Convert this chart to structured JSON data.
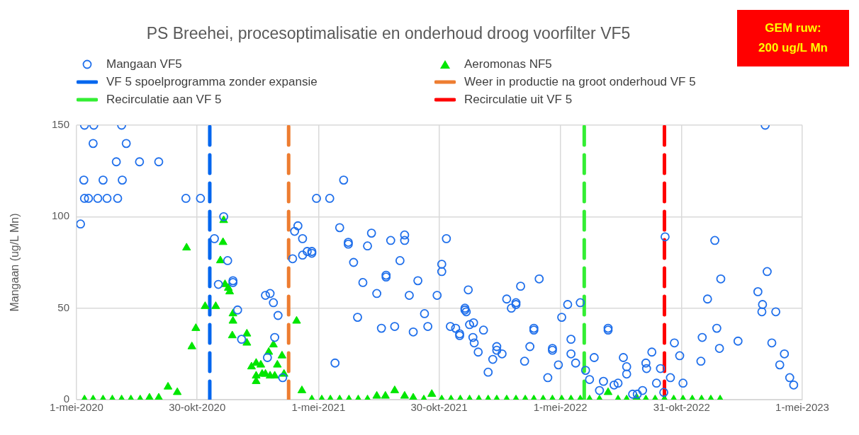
{
  "chart_data": {
    "type": "scatter",
    "title": "PS Breehei, procesoptimalisatie en onderhoud droog voorfilter VF5",
    "ylabel": "Mangaan (ug/L Mn)",
    "annotations": [
      "GEM ruw: 200 ug/L Mn"
    ],
    "xlim": [
      "2020-05-01",
      "2023-05-01"
    ],
    "xticks": [
      {
        "value": "2020-05-01",
        "label": "1-mei-2020"
      },
      {
        "value": "2020-10-30",
        "label": "30-okt-2020"
      },
      {
        "value": "2021-05-01",
        "label": "1-mei-2021"
      },
      {
        "value": "2021-10-30",
        "label": "30-okt-2021"
      },
      {
        "value": "2022-05-01",
        "label": "1-mei-2022"
      },
      {
        "value": "2022-10-31",
        "label": "31-okt-2022"
      },
      {
        "value": "2023-05-01",
        "label": "1-mei-2023"
      }
    ],
    "ylim": [
      0,
      150
    ],
    "yticks": [
      0,
      50,
      100,
      150
    ],
    "grid": true,
    "legend": "top",
    "series": [
      {
        "name": "Mangaan VF5",
        "marker": "circle",
        "color": "#1f6feb",
        "x": [
          "2020-05-07",
          "2020-05-12",
          "2020-05-13",
          "2020-05-13",
          "2020-05-19",
          "2020-05-26",
          "2020-05-27",
          "2020-06-02",
          "2020-06-10",
          "2020-06-16",
          "2020-06-30",
          "2020-07-02",
          "2020-07-08",
          "2020-07-09",
          "2020-07-15",
          "2020-08-04",
          "2020-09-02",
          "2020-10-13",
          "2020-11-04",
          "2020-11-25",
          "2020-12-01",
          "2020-12-09",
          "2020-12-15",
          "2020-12-23",
          "2020-12-23",
          "2020-12-30",
          "2021-01-05",
          "2021-02-10",
          "2021-02-13",
          "2021-02-17",
          "2021-02-22",
          "2021-02-24",
          "2021-03-01",
          "2021-03-08",
          "2021-03-23",
          "2021-03-26",
          "2021-03-31",
          "2021-04-07",
          "2021-04-07",
          "2021-04-14",
          "2021-04-21",
          "2021-04-21",
          "2021-04-28",
          "2021-05-18",
          "2021-05-26",
          "2021-06-02",
          "2021-06-08",
          "2021-06-15",
          "2021-06-15",
          "2021-06-23",
          "2021-06-29",
          "2021-07-07",
          "2021-07-14",
          "2021-07-20",
          "2021-07-28",
          "2021-08-04",
          "2021-08-11",
          "2021-08-11",
          "2021-08-18",
          "2021-08-24",
          "2021-09-01",
          "2021-09-08",
          "2021-09-08",
          "2021-09-15",
          "2021-09-21",
          "2021-09-28",
          "2021-10-08",
          "2021-10-13",
          "2021-10-27",
          "2021-11-03",
          "2021-11-03",
          "2021-11-10",
          "2021-11-16",
          "2021-11-24",
          "2021-11-30",
          "2021-11-30",
          "2021-12-08",
          "2021-12-08",
          "2021-12-10",
          "2021-12-13",
          "2021-12-15",
          "2021-12-20",
          "2021-12-21",
          "2021-12-22",
          "2021-12-28",
          "2022-01-05",
          "2022-01-12",
          "2022-01-19",
          "2022-01-25",
          "2022-01-25",
          "2022-02-02",
          "2022-02-09",
          "2022-02-16",
          "2022-02-23",
          "2022-02-23",
          "2022-03-02",
          "2022-03-08",
          "2022-03-16",
          "2022-03-22",
          "2022-03-22",
          "2022-03-30",
          "2022-04-12",
          "2022-04-19",
          "2022-04-19",
          "2022-04-28",
          "2022-05-03",
          "2022-05-12",
          "2022-05-17",
          "2022-05-17",
          "2022-05-24",
          "2022-05-31",
          "2022-06-08",
          "2022-06-14",
          "2022-06-21",
          "2022-06-29",
          "2022-07-05",
          "2022-07-12",
          "2022-07-12",
          "2022-07-21",
          "2022-07-27",
          "2022-08-04",
          "2022-08-09",
          "2022-08-09",
          "2022-08-18",
          "2022-08-25",
          "2022-09-02",
          "2022-09-07",
          "2022-09-08",
          "2022-09-16",
          "2022-09-23",
          "2022-09-29",
          "2022-10-04",
          "2022-10-06",
          "2022-10-14",
          "2022-10-20",
          "2022-10-28",
          "2022-11-02",
          "2022-11-29",
          "2022-12-01",
          "2022-12-09",
          "2022-12-20",
          "2022-12-23",
          "2022-12-27",
          "2022-12-29",
          "2023-01-24",
          "2023-02-23",
          "2023-03-01",
          "2023-03-02",
          "2023-03-06",
          "2023-03-09",
          "2023-03-16",
          "2023-03-22",
          "2023-03-28",
          "2023-04-04",
          "2023-04-12",
          "2023-04-18"
        ],
        "values": [
          96,
          120,
          150,
          110,
          110,
          140,
          150,
          110,
          120,
          110,
          130,
          110,
          150,
          120,
          140,
          130,
          130,
          110,
          110,
          88,
          63,
          100,
          76,
          65,
          64,
          49,
          33,
          57,
          23,
          58,
          53,
          34,
          46,
          12,
          77,
          92,
          95,
          88,
          79,
          81,
          81,
          80,
          110,
          110,
          20,
          94,
          120,
          86,
          85,
          75,
          45,
          64,
          84,
          91,
          58,
          39,
          68,
          67,
          87,
          40,
          76,
          90,
          87,
          57,
          37,
          65,
          47,
          40,
          57,
          74,
          70,
          88,
          40,
          39,
          36,
          35,
          50,
          49,
          48,
          60,
          41,
          34,
          42,
          31,
          26,
          38,
          15,
          22,
          29,
          27,
          25,
          55,
          50,
          53,
          52,
          62,
          21,
          29,
          39,
          38,
          66,
          12,
          28,
          27,
          19,
          45,
          52,
          33,
          25,
          20,
          53,
          16,
          11,
          23,
          5,
          10,
          39,
          38,
          8,
          9,
          23,
          18,
          14,
          3,
          3,
          5,
          20,
          17,
          26,
          9,
          17,
          4,
          89,
          12,
          31,
          24,
          9,
          21,
          34,
          55,
          87,
          39,
          28,
          66,
          32,
          59,
          48,
          52,
          150,
          70,
          31,
          48,
          19,
          25,
          12,
          8
        ]
      },
      {
        "name": "Aeromonas NF5",
        "marker": "triangle",
        "color": "#00e600",
        "x": [
          "2020-05-13",
          "2020-05-26",
          "2020-06-10",
          "2020-06-24",
          "2020-07-08",
          "2020-07-22",
          "2020-08-05",
          "2020-08-19",
          "2020-09-02",
          "2020-09-16",
          "2020-09-30",
          "2020-10-14",
          "2020-10-22",
          "2020-10-28",
          "2020-11-11",
          "2020-11-27",
          "2020-12-04",
          "2020-12-08",
          "2020-12-09",
          "2020-12-11",
          "2020-12-16",
          "2020-12-18",
          "2020-12-22",
          "2020-12-23",
          "2020-12-23",
          "2021-01-13",
          "2021-01-13",
          "2021-01-20",
          "2021-01-27",
          "2021-01-27",
          "2021-01-27",
          "2021-02-03",
          "2021-02-05",
          "2021-02-10",
          "2021-02-15",
          "2021-02-17",
          "2021-02-22",
          "2021-02-24",
          "2021-02-28",
          "2021-03-07",
          "2021-03-10",
          "2021-03-29",
          "2021-04-06",
          "2021-04-21",
          "2021-05-06",
          "2021-05-19",
          "2021-06-02",
          "2021-06-16",
          "2021-06-30",
          "2021-07-14",
          "2021-07-28",
          "2021-08-10",
          "2021-08-24",
          "2021-09-08",
          "2021-09-21",
          "2021-10-07",
          "2021-10-19",
          "2021-11-03",
          "2021-11-17",
          "2021-12-01",
          "2021-12-15",
          "2021-12-29",
          "2022-01-12",
          "2022-01-25",
          "2022-02-09",
          "2022-02-23",
          "2022-03-09",
          "2022-03-22",
          "2022-04-05",
          "2022-04-19",
          "2022-05-03",
          "2022-05-17",
          "2022-05-31",
          "2022-06-14",
          "2022-06-29",
          "2022-07-12",
          "2022-07-27",
          "2022-08-09",
          "2022-08-24",
          "2022-09-07",
          "2022-09-21",
          "2022-10-05",
          "2022-10-19",
          "2022-11-02",
          "2022-11-16",
          "2022-11-30",
          "2022-12-14",
          "2022-12-28"
        ],
        "values": [
          0,
          0,
          0,
          0,
          0,
          0,
          0,
          1,
          1,
          7,
          4,
          83,
          29,
          39,
          51,
          51,
          76,
          86,
          98,
          63,
          61,
          59,
          35,
          47,
          43,
          36,
          31,
          18,
          20,
          13,
          10,
          19,
          14,
          14,
          26,
          13,
          30,
          13,
          19,
          24,
          14,
          43,
          5,
          0,
          0,
          0,
          0,
          0,
          0,
          0,
          2,
          2,
          5,
          2,
          1,
          0,
          3,
          0,
          0,
          0,
          0,
          0,
          0,
          0,
          0,
          0,
          0,
          0,
          0,
          0,
          0,
          0,
          0,
          0,
          0,
          4,
          0,
          0,
          1,
          0,
          0,
          0,
          0,
          0,
          0,
          0,
          0,
          0
        ]
      },
      {
        "name": "VF 5 spoelprogramma zonder expansie",
        "type": "line",
        "color": "#0066ee",
        "line_style": "dashed",
        "x": [
          "2020-11-18",
          "2020-11-18"
        ],
        "values": [
          0,
          150
        ]
      },
      {
        "name": "Weer in productie na groot onderhoud VF 5",
        "type": "line",
        "color": "#ed7d31",
        "line_style": "dashed",
        "x": [
          "2021-03-17",
          "2021-03-17"
        ],
        "values": [
          0,
          150
        ]
      },
      {
        "name": "Recirculatie aan VF 5",
        "type": "line",
        "color": "#33ee33",
        "line_style": "dashed",
        "x": [
          "2022-06-06",
          "2022-06-06"
        ],
        "values": [
          0,
          150
        ]
      },
      {
        "name": "Recirculatie uit VF 5",
        "type": "line",
        "color": "#ff0000",
        "line_style": "dashed",
        "x": [
          "2022-10-05",
          "2022-10-05"
        ],
        "values": [
          0,
          150
        ]
      }
    ]
  }
}
